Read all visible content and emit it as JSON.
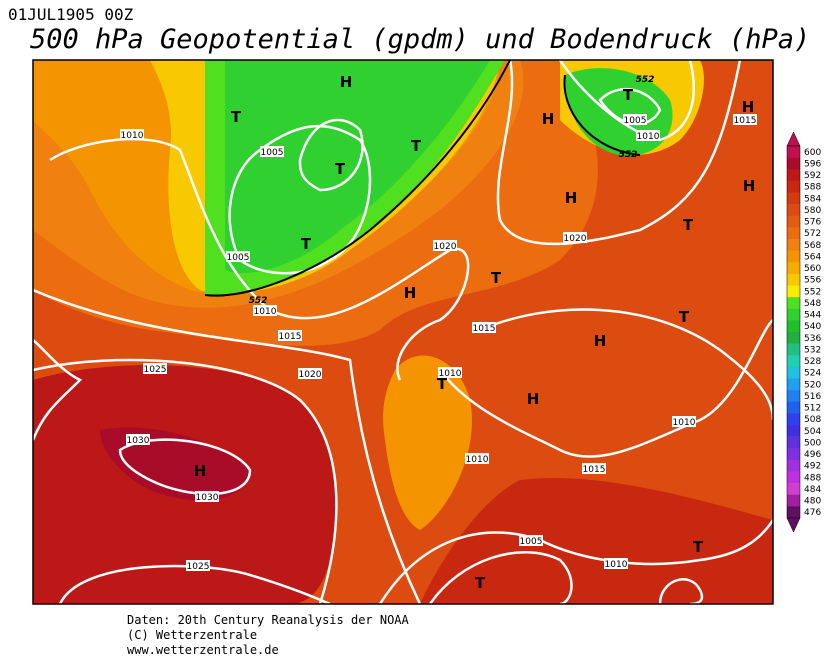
{
  "header": {
    "date": "01JUL1905 00Z",
    "title": "500 hPa Geopotential (gpdm) und Bodendruck (hPa)"
  },
  "map": {
    "pressure_labels": [
      "1010",
      "1005",
      "1005",
      "1010",
      "1015",
      "1020",
      "1015",
      "1010",
      "1020",
      "1025",
      "1030",
      "1030",
      "1025",
      "1010",
      "1015",
      "1010",
      "1005",
      "1010",
      "1005",
      "1010",
      "1015",
      "1020"
    ],
    "geopotential_labels": [
      "552",
      "552",
      "552"
    ],
    "centers": [
      "H",
      "H",
      "H",
      "H",
      "H",
      "H",
      "H",
      "H",
      "H",
      "T",
      "T",
      "T",
      "T",
      "T",
      "T",
      "T",
      "T",
      "T",
      "T",
      "T"
    ]
  },
  "colorbar": {
    "labels": [
      "600",
      "596",
      "592",
      "588",
      "584",
      "580",
      "576",
      "572",
      "568",
      "564",
      "560",
      "556",
      "552",
      "548",
      "544",
      "540",
      "536",
      "532",
      "528",
      "524",
      "520",
      "516",
      "512",
      "508",
      "504",
      "500",
      "496",
      "492",
      "488",
      "484",
      "480",
      "476"
    ],
    "colors": [
      "#c01050",
      "#a80c28",
      "#bc1818",
      "#c82810",
      "#d43c10",
      "#dc4c10",
      "#e45c10",
      "#ec6c10",
      "#f08010",
      "#f49400",
      "#f8ac00",
      "#f8c800",
      "#f8ec00",
      "#50e020",
      "#30d030",
      "#20c028",
      "#20b040",
      "#20c080",
      "#20d0b0",
      "#20c0e0",
      "#20a0f0",
      "#2080f0",
      "#2060f0",
      "#3040f0",
      "#4030e0",
      "#6030e0",
      "#8030e0",
      "#a030e0",
      "#c030e0",
      "#d040d0",
      "#a020a0",
      "#601060"
    ]
  },
  "footer": [
    "Daten: 20th Century Reanalysis der NOAA",
    "(C) Wetterzentrale",
    "www.wetterzentrale.de"
  ]
}
